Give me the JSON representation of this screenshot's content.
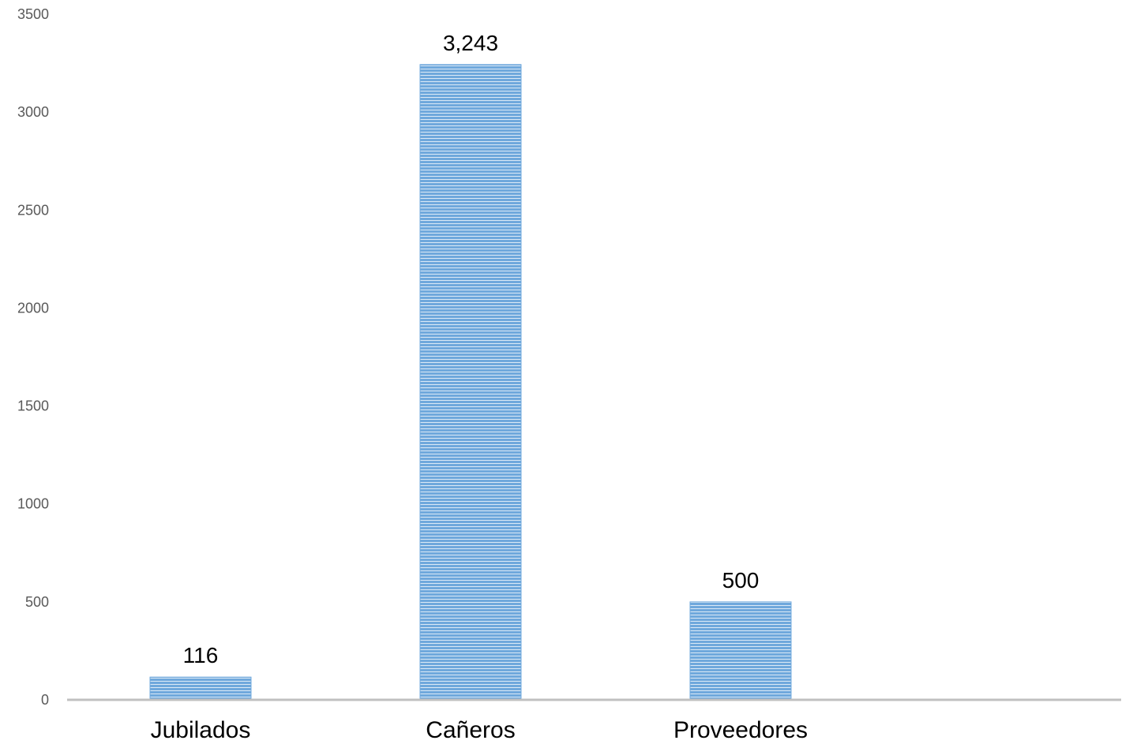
{
  "chart_data": {
    "type": "bar",
    "title": "",
    "xlabel": "",
    "ylabel": "",
    "categories": [
      "Jubilados",
      "Cañeros",
      "Proveedores"
    ],
    "values": [
      116,
      3243,
      500
    ],
    "data_labels": [
      "116",
      "3,243",
      "500"
    ],
    "ylim": [
      0,
      3500
    ],
    "yticks": [
      0,
      500,
      1000,
      1500,
      2000,
      2500,
      3000,
      3500
    ],
    "ytick_labels": [
      "0",
      "500",
      "1000",
      "1500",
      "2000",
      "2500",
      "3000",
      "3500"
    ],
    "grid": false,
    "legend": "none",
    "colors": {
      "bar": "#6fa8dc",
      "bar_stripe": "#ffffff",
      "axis_line": "#c0c0c0",
      "tick_text": "#595959",
      "label_text": "#000000"
    }
  }
}
